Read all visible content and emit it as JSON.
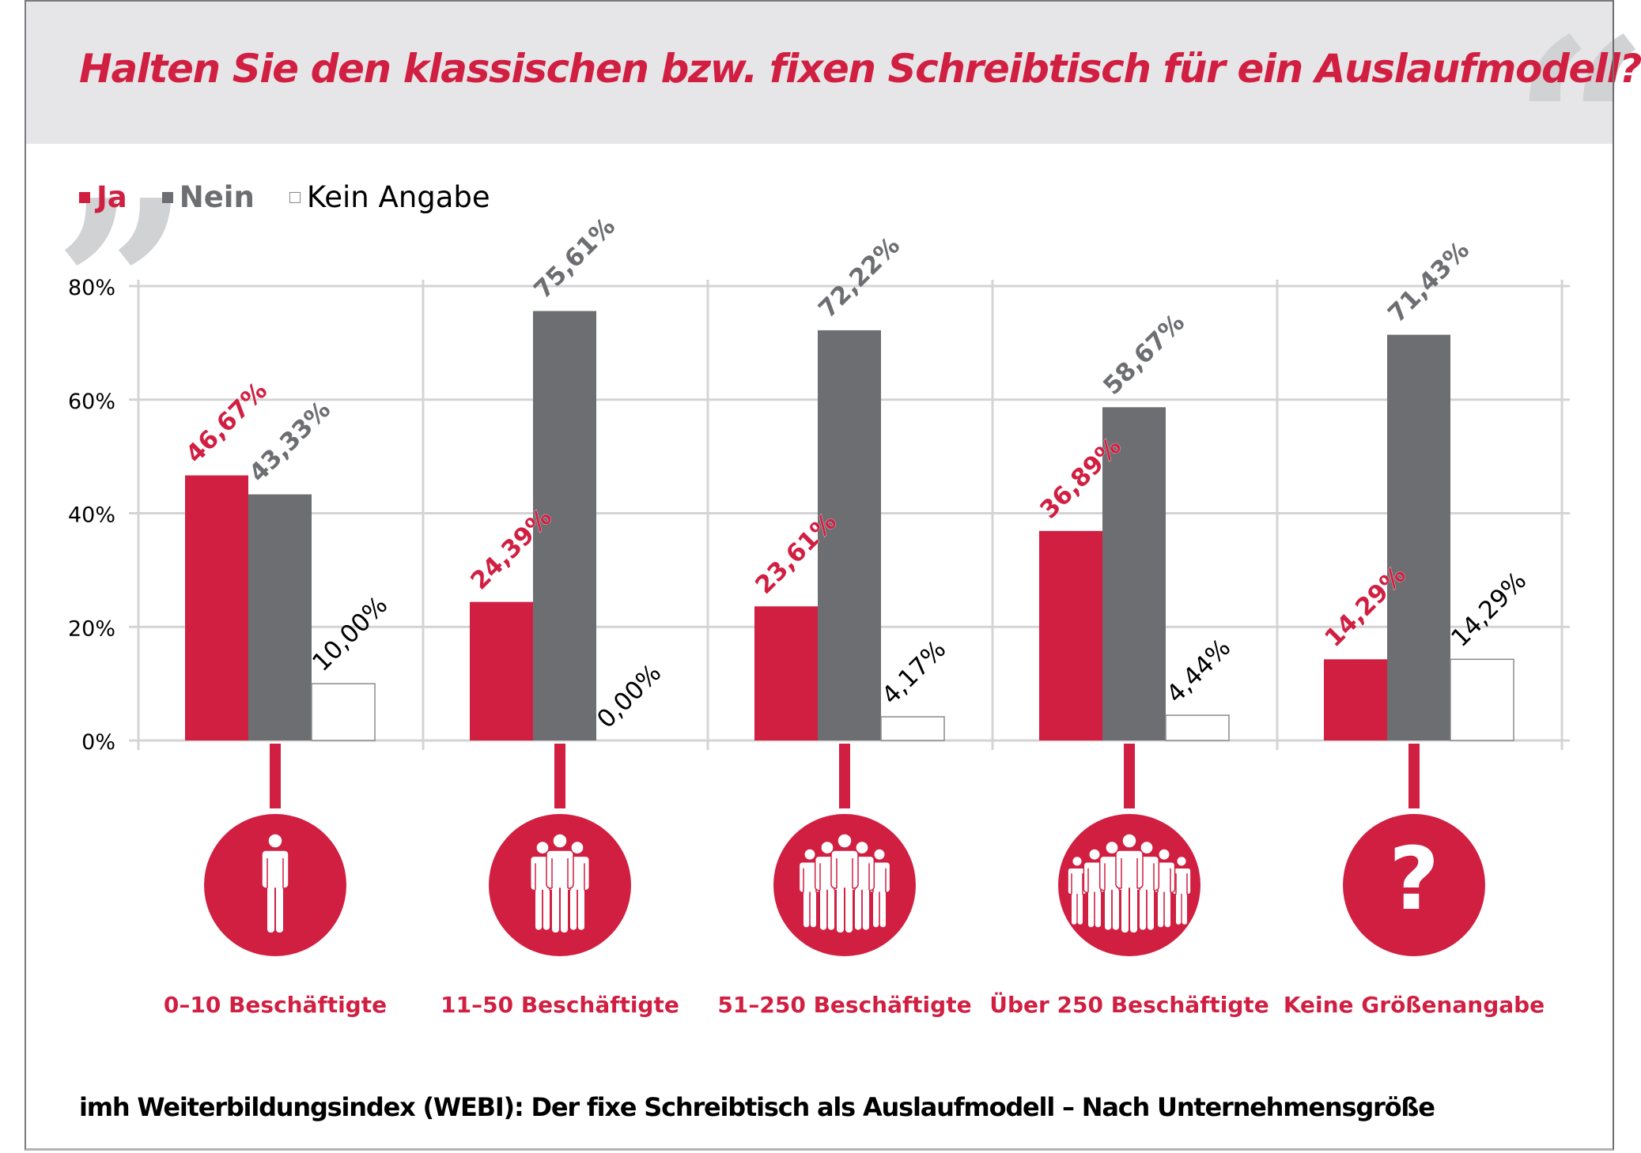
{
  "header": {
    "title": "Halten Sie den klassischen bzw. fixen Schreibtisch für ein Auslaufmodell?",
    "open_quote": "„",
    "close_quote": "“"
  },
  "legend": [
    {
      "label": "Ja",
      "color": "#d11f42"
    },
    {
      "label": "Nein",
      "color": "#6d6e71"
    },
    {
      "label": "Kein Angabe",
      "color": "#ffffff"
    }
  ],
  "footer": {
    "caption": "imh Weiterbildungsindex (WEBI): Der fixe Schreibtisch als Auslaufmodell –  Nach Unternehmensgröße"
  },
  "colors": {
    "accent": "#d11f42",
    "grey_bar": "#6d6e71",
    "header_bg": "#e6e6e8",
    "grid": "#d4d4d6",
    "quote_marks": "#d1d2d4"
  },
  "chart_data": {
    "type": "bar",
    "title": "Halten Sie den klassischen bzw. fixen Schreibtisch für ein Auslaufmodell?",
    "xlabel": "",
    "ylabel": "",
    "ylim": [
      0,
      80
    ],
    "yticks": [
      0,
      20,
      40,
      60,
      80
    ],
    "ytick_labels": [
      "0%",
      "20%",
      "40%",
      "60%",
      "80%"
    ],
    "grid": true,
    "legend_position": "top-left",
    "categories": [
      "0–10 Beschäftigte",
      "11–50 Beschäftigte",
      "51–250 Beschäftigte",
      "Über 250 Beschäftigte",
      "Keine Größenangabe"
    ],
    "category_icons": [
      "person-icon",
      "group-3-people-icon",
      "group-5-people-icon",
      "group-7-people-icon",
      "question-mark-icon"
    ],
    "series": [
      {
        "name": "Ja",
        "color": "#d11f42",
        "values": [
          46.67,
          24.39,
          23.61,
          36.89,
          14.29
        ],
        "labels": [
          "46,67%",
          "24,39%",
          "23,61%",
          "36,89%",
          "14,29%"
        ]
      },
      {
        "name": "Nein",
        "color": "#6d6e71",
        "values": [
          43.33,
          75.61,
          72.22,
          58.67,
          71.43
        ],
        "labels": [
          "43,33%",
          "75,61%",
          "72,22%",
          "58,67%",
          "71,43%"
        ]
      },
      {
        "name": "Kein Angabe",
        "color": "#ffffff",
        "values": [
          10.0,
          0.0,
          4.17,
          4.44,
          14.29
        ],
        "labels": [
          "10,00%",
          "0,00%",
          "4,17%",
          "4,44%",
          "14,29%"
        ]
      }
    ]
  }
}
